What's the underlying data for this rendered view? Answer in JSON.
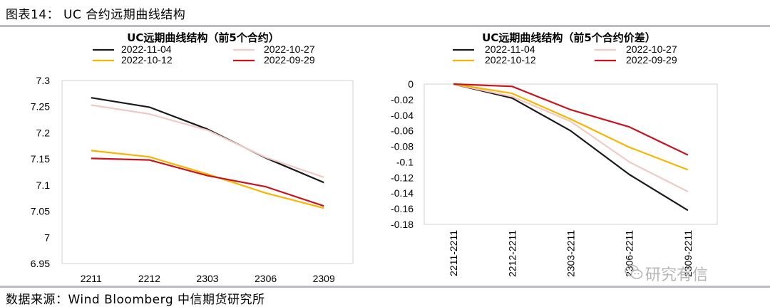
{
  "figure": {
    "title": "图表14： UC 合约远期曲线结构",
    "source": "数据来源：Wind  Bloomberg  中信期货研究所",
    "watermark": "研究有信"
  },
  "chart_data": [
    {
      "type": "line",
      "title": "UC远期曲线结构（前5个合约）",
      "categories": [
        "2211",
        "2212",
        "2303",
        "2306",
        "2309"
      ],
      "ylim": [
        6.95,
        7.3
      ],
      "yticks": [
        "7.3",
        "7.25",
        "7.2",
        "7.15",
        "7.1",
        "7.05",
        "7",
        "6.95"
      ],
      "legend_position": "top",
      "grid": false,
      "series": [
        {
          "name": "2022-11-04",
          "color": "#1a1a1a",
          "values": [
            7.267,
            7.249,
            7.207,
            7.152,
            7.105
          ]
        },
        {
          "name": "2022-10-27",
          "color": "#f2c9c4",
          "values": [
            7.253,
            7.236,
            7.205,
            7.153,
            7.115
          ]
        },
        {
          "name": "2022-10-12",
          "color": "#f7b500",
          "values": [
            7.166,
            7.154,
            7.121,
            7.085,
            7.056
          ]
        },
        {
          "name": "2022-09-29",
          "color": "#c8141e",
          "values": [
            7.151,
            7.148,
            7.118,
            7.097,
            7.06
          ]
        }
      ]
    },
    {
      "type": "line",
      "title": "UC远期曲线结构（前5个合约价差）",
      "categories": [
        "2211-2211",
        "2212-2211",
        "2303-2211",
        "2306-2211",
        "2309-2211"
      ],
      "ylim": [
        -0.18,
        0
      ],
      "yticks": [
        "0",
        "-0.02",
        "-0.04",
        "-0.06",
        "-0.08",
        "-0.1",
        "-0.12",
        "-0.14",
        "-0.16",
        "-0.18"
      ],
      "legend_position": "top",
      "grid": false,
      "series": [
        {
          "name": "2022-11-04",
          "color": "#1a1a1a",
          "values": [
            0,
            -0.018,
            -0.06,
            -0.116,
            -0.162
          ]
        },
        {
          "name": "2022-10-27",
          "color": "#f2c9c4",
          "values": [
            0,
            -0.016,
            -0.048,
            -0.1,
            -0.138
          ]
        },
        {
          "name": "2022-10-12",
          "color": "#f7b500",
          "values": [
            0,
            -0.012,
            -0.045,
            -0.081,
            -0.11
          ]
        },
        {
          "name": "2022-09-29",
          "color": "#c8141e",
          "values": [
            0,
            -0.003,
            -0.033,
            -0.055,
            -0.091
          ]
        }
      ]
    }
  ]
}
